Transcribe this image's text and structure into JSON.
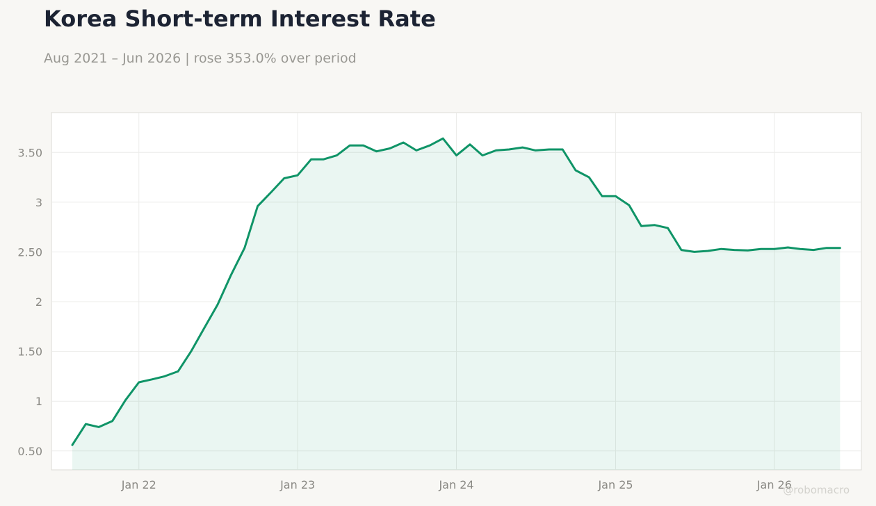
{
  "header": {
    "title": "Korea Short-term Interest Rate",
    "subtitle": "Aug 2021 – Jun 2026 | rose 353.0% over period"
  },
  "watermark": "@robomacro",
  "colors": {
    "line": "#0f9467",
    "fill": "#0f9467",
    "background": "#f8f7f4",
    "plot_background": "#ffffff",
    "grid": "#ececea"
  },
  "chart_data": {
    "type": "area",
    "title": "Korea Short-term Interest Rate",
    "xlabel": "",
    "ylabel": "",
    "grid": true,
    "ylim": [
      0.31,
      3.9
    ],
    "xlim": [
      "2021-06-14",
      "2026-07-20"
    ],
    "x_ticks": [
      {
        "date": "2022-01-01",
        "label": "Jan 22"
      },
      {
        "date": "2023-01-01",
        "label": "Jan 23"
      },
      {
        "date": "2024-01-01",
        "label": "Jan 24"
      },
      {
        "date": "2025-01-01",
        "label": "Jan 25"
      },
      {
        "date": "2026-01-01",
        "label": "Jan 26"
      }
    ],
    "y_ticks": [
      {
        "value": 0.5,
        "label": "0.50"
      },
      {
        "value": 1,
        "label": "1"
      },
      {
        "value": 1.5,
        "label": "1.50"
      },
      {
        "value": 2,
        "label": "2"
      },
      {
        "value": 2.5,
        "label": "2.50"
      },
      {
        "value": 3,
        "label": "3"
      },
      {
        "value": 3.5,
        "label": "3.50"
      }
    ],
    "series": [
      {
        "x": [
          "2021-08-01",
          "2021-09-01",
          "2021-10-01",
          "2021-11-01",
          "2021-12-01",
          "2022-01-01",
          "2022-02-01",
          "2022-03-01",
          "2022-04-01",
          "2022-05-01",
          "2022-06-01",
          "2022-07-01",
          "2022-08-01",
          "2022-09-01",
          "2022-10-01",
          "2022-11-01",
          "2022-12-01",
          "2023-01-01",
          "2023-02-01",
          "2023-03-01",
          "2023-04-01",
          "2023-05-01",
          "2023-06-01",
          "2023-07-01",
          "2023-08-01",
          "2023-09-01",
          "2023-10-01",
          "2023-11-01",
          "2023-12-01",
          "2024-01-01",
          "2024-02-01",
          "2024-03-01",
          "2024-04-01",
          "2024-05-01",
          "2024-06-01",
          "2024-07-01",
          "2024-08-01",
          "2024-09-01",
          "2024-10-01",
          "2024-11-01",
          "2024-12-01",
          "2025-01-01",
          "2025-02-01",
          "2025-03-01",
          "2025-04-01",
          "2025-05-01",
          "2025-06-01",
          "2025-07-01",
          "2025-08-01",
          "2025-09-01",
          "2025-10-01",
          "2025-11-01",
          "2025-12-01",
          "2026-01-01",
          "2026-02-01",
          "2026-03-01",
          "2026-04-01",
          "2026-05-01",
          "2026-06-01"
        ],
        "values": [
          0.56,
          0.77,
          0.74,
          0.8,
          1.01,
          1.19,
          1.22,
          1.25,
          1.3,
          1.5,
          1.74,
          1.97,
          2.27,
          2.54,
          2.96,
          3.1,
          3.24,
          3.27,
          3.43,
          3.43,
          3.47,
          3.57,
          3.57,
          3.51,
          3.54,
          3.6,
          3.52,
          3.57,
          3.64,
          3.47,
          3.58,
          3.47,
          3.52,
          3.53,
          3.55,
          3.52,
          3.53,
          3.53,
          3.32,
          3.25,
          3.06,
          3.06,
          2.97,
          2.76,
          2.77,
          2.74,
          2.52,
          2.5,
          2.51,
          2.53,
          2.52,
          2.515,
          2.53,
          2.53,
          2.545,
          2.53,
          2.52,
          2.54,
          2.54
        ]
      }
    ]
  }
}
